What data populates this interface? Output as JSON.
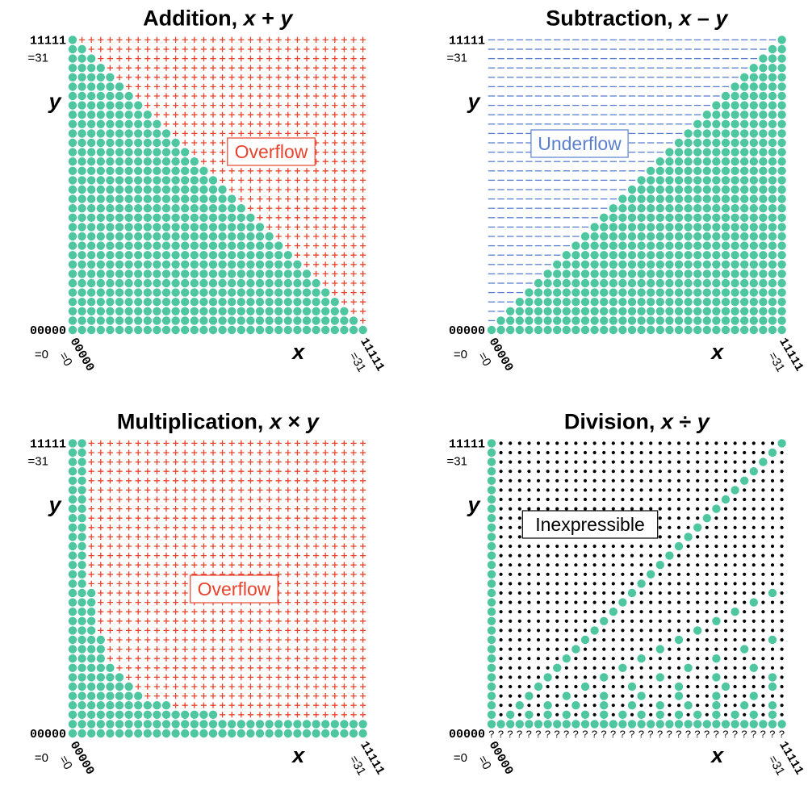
{
  "chart_data": [
    {
      "type": "scatter",
      "title": "Addition, ",
      "title_expr": [
        "x",
        " + ",
        "y"
      ],
      "xlabel": "x",
      "ylabel": "y",
      "x_range": [
        0,
        31
      ],
      "y_range": [
        0,
        31
      ],
      "tick_binary": {
        "min": "00000",
        "max": "11111"
      },
      "tick_decimal": {
        "min": "=0",
        "max": "=31"
      },
      "region_label": "Overflow",
      "region_color": "#e8432d",
      "valid_color": "#4ec7a1",
      "valid_rule": "x + y <= 31",
      "invalid_marker": "plus"
    },
    {
      "type": "scatter",
      "title": "Subtraction, ",
      "title_expr": [
        "x",
        " – ",
        "y"
      ],
      "xlabel": "x",
      "ylabel": "y",
      "x_range": [
        0,
        31
      ],
      "y_range": [
        0,
        31
      ],
      "tick_binary": {
        "min": "00000",
        "max": "11111"
      },
      "tick_decimal": {
        "min": "=0",
        "max": "=31"
      },
      "region_label": "Underflow",
      "region_color": "#5b7fcf",
      "valid_color": "#4ec7a1",
      "valid_rule": "x >= y",
      "invalid_marker": "dash"
    },
    {
      "type": "scatter",
      "title": "Multiplication, ",
      "title_expr": [
        "x",
        " × ",
        "y"
      ],
      "xlabel": "x",
      "ylabel": "y",
      "x_range": [
        0,
        31
      ],
      "y_range": [
        0,
        31
      ],
      "tick_binary": {
        "min": "00000",
        "max": "11111"
      },
      "tick_decimal": {
        "min": "=0",
        "max": "=31"
      },
      "region_label": "Overflow",
      "region_color": "#e8432d",
      "valid_color": "#4ec7a1",
      "valid_rule": "x * y <= 31",
      "invalid_marker": "plus"
    },
    {
      "type": "scatter",
      "title": "Division, ",
      "title_expr": [
        "x",
        " ÷ ",
        "y"
      ],
      "xlabel": "x",
      "ylabel": "y",
      "x_range": [
        0,
        31
      ],
      "y_range": [
        0,
        31
      ],
      "tick_binary": {
        "min": "00000",
        "max": "11111"
      },
      "tick_decimal": {
        "min": "=0",
        "max": "=31"
      },
      "region_label": "Inexpressible",
      "region_color": "#000000",
      "valid_color": "#4ec7a1",
      "valid_rule": "y > 0 and x mod y == 0",
      "invalid_marker": "dot",
      "undefined_row_marker": "?"
    }
  ]
}
